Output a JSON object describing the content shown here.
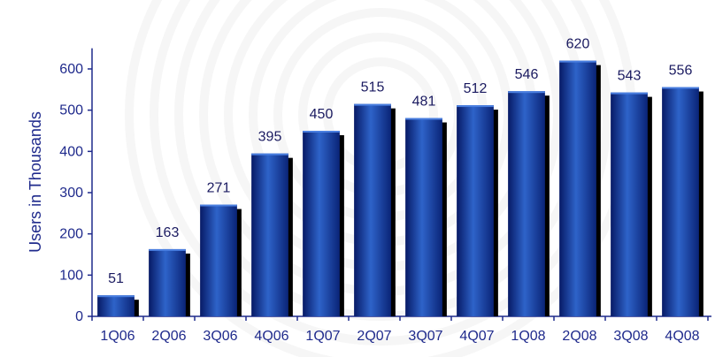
{
  "chart_data": {
    "type": "bar",
    "categories": [
      "1Q06",
      "2Q06",
      "3Q06",
      "4Q06",
      "1Q07",
      "2Q07",
      "3Q07",
      "4Q07",
      "1Q08",
      "2Q08",
      "3Q08",
      "4Q08"
    ],
    "values": [
      51,
      163,
      271,
      395,
      450,
      515,
      481,
      512,
      546,
      620,
      543,
      556
    ],
    "title": "",
    "xlabel": "",
    "ylabel": "Users in Thousands",
    "ylim": [
      0,
      650
    ],
    "yticks": [
      0,
      100,
      200,
      300,
      400,
      500,
      600
    ],
    "grid": false,
    "legend": "none",
    "colors": {
      "bar_light": "#2e63c9",
      "bar_dark": "#071a66",
      "shadow": "#000000",
      "axis": "#1f2a8c",
      "text": "#1f2a8c",
      "watermark": "#eeeeee"
    }
  }
}
